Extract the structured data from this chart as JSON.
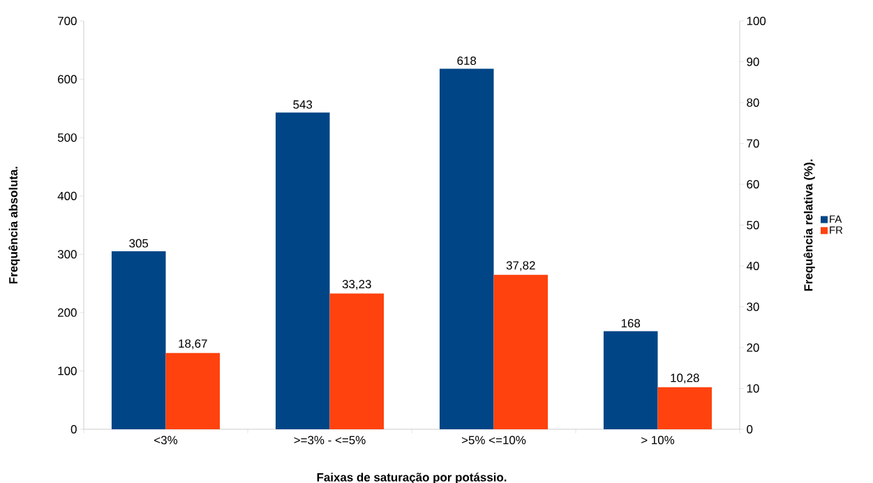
{
  "chart_data": {
    "type": "bar",
    "xlabel": "Faixas de saturação por potássio.",
    "ylabel": "Frequência absoluta.",
    "y2label": "Frequência relativa (%).",
    "categories": [
      "<3%",
      ">=3% - <=5%",
      ">5% <=10%",
      "> 10%"
    ],
    "series": [
      {
        "name": "FA",
        "color": "#004586",
        "values": [
          305,
          543,
          618,
          168
        ],
        "value_labels": [
          "305",
          "543",
          "618",
          "168"
        ]
      },
      {
        "name": "FR",
        "color": "#ff420e",
        "axis": "y2",
        "values": [
          18.67,
          33.23,
          37.82,
          10.28
        ],
        "value_labels": [
          "18,67",
          "33,23",
          "37,82",
          "10,28"
        ]
      }
    ],
    "ylim": [
      0,
      700
    ],
    "yticks": [
      0,
      100,
      200,
      300,
      400,
      500,
      600,
      700
    ],
    "y2lim": [
      0,
      100
    ],
    "y2ticks": [
      0,
      10,
      20,
      30,
      40,
      50,
      60,
      70,
      80,
      90,
      100
    ],
    "legend": "right",
    "grid": false
  }
}
